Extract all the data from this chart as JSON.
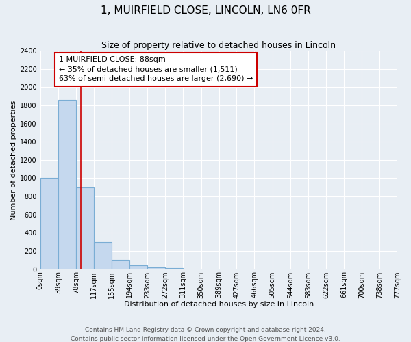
{
  "title": "1, MUIRFIELD CLOSE, LINCOLN, LN6 0FR",
  "subtitle": "Size of property relative to detached houses in Lincoln",
  "xlabel": "Distribution of detached houses by size in Lincoln",
  "ylabel": "Number of detached properties",
  "bin_edges": [
    0,
    39,
    78,
    117,
    155,
    194,
    233,
    272,
    311,
    350,
    389,
    427,
    466,
    505,
    544,
    583,
    622,
    661,
    700,
    738,
    777
  ],
  "bar_heights": [
    1000,
    1860,
    900,
    300,
    100,
    45,
    20,
    10,
    0,
    0,
    0,
    0,
    0,
    0,
    0,
    0,
    0,
    0,
    0,
    0
  ],
  "bar_color": "#c5d8ee",
  "bar_edge_color": "#7aadd4",
  "property_line_x": 88,
  "property_line_color": "#cc0000",
  "annotation_text": "1 MUIRFIELD CLOSE: 88sqm\n← 35% of detached houses are smaller (1,511)\n63% of semi-detached houses are larger (2,690) →",
  "annotation_box_color": "#ffffff",
  "annotation_box_edge_color": "#cc0000",
  "ylim": [
    0,
    2400
  ],
  "yticks": [
    0,
    200,
    400,
    600,
    800,
    1000,
    1200,
    1400,
    1600,
    1800,
    2000,
    2200,
    2400
  ],
  "tick_labels": [
    "0sqm",
    "39sqm",
    "78sqm",
    "117sqm",
    "155sqm",
    "194sqm",
    "233sqm",
    "272sqm",
    "311sqm",
    "350sqm",
    "389sqm",
    "427sqm",
    "466sqm",
    "505sqm",
    "544sqm",
    "583sqm",
    "622sqm",
    "661sqm",
    "700sqm",
    "738sqm",
    "777sqm"
  ],
  "footer_line1": "Contains HM Land Registry data © Crown copyright and database right 2024.",
  "footer_line2": "Contains public sector information licensed under the Open Government Licence v3.0.",
  "background_color": "#e8eef4",
  "plot_bg_color": "#e8eef4",
  "grid_color": "#ffffff",
  "title_fontsize": 11,
  "subtitle_fontsize": 9,
  "axis_label_fontsize": 8,
  "tick_fontsize": 7,
  "annotation_fontsize": 8,
  "footer_fontsize": 6.5
}
